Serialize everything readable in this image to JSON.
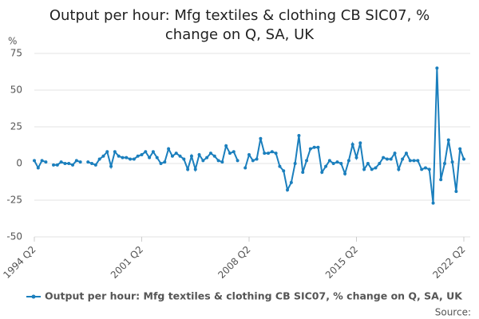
{
  "chart_data": {
    "type": "line",
    "title": "Output per hour: Mfg textiles & clothing CB SIC07, % change on Q, SA, UK",
    "y_label": "%",
    "source": "Source:",
    "categories": [
      "1994 Q2",
      null,
      null,
      null,
      null,
      null,
      null,
      null,
      null,
      null,
      null,
      null,
      null,
      null,
      null,
      null,
      null,
      null,
      null,
      null,
      null,
      null,
      null,
      null,
      null,
      null,
      null,
      null,
      "2001 Q2",
      null,
      null,
      null,
      null,
      null,
      null,
      null,
      null,
      null,
      null,
      null,
      null,
      null,
      null,
      null,
      null,
      null,
      null,
      null,
      null,
      null,
      null,
      null,
      null,
      null,
      null,
      null,
      "2008 Q2",
      null,
      null,
      null,
      null,
      null,
      null,
      null,
      null,
      null,
      null,
      null,
      null,
      null,
      null,
      null,
      null,
      null,
      null,
      null,
      null,
      null,
      null,
      null,
      null,
      null,
      null,
      null,
      "2015 Q2",
      null,
      null,
      null,
      null,
      null,
      null,
      null,
      null,
      null,
      null,
      null,
      null,
      null,
      null,
      null,
      null,
      null,
      null,
      null,
      null,
      null,
      null,
      null,
      null,
      null,
      null,
      null,
      "2022 Q2"
    ],
    "series": [
      {
        "name": "Output per hour: Mfg textiles & clothing CB SIC07, % change on Q, SA, UK",
        "color": "#1b7fbd",
        "values": [
          2,
          -3,
          2,
          1,
          null,
          -1,
          -1,
          1,
          0,
          0,
          -1,
          2,
          1,
          null,
          1,
          0,
          -1,
          3,
          5,
          8,
          -2,
          8,
          5,
          4,
          4,
          3,
          3,
          5,
          6,
          8,
          4,
          8,
          4,
          0,
          1,
          10,
          5,
          7,
          5,
          3,
          -4,
          5,
          -4,
          6,
          2,
          4,
          7,
          5,
          2,
          1,
          12,
          7,
          8,
          2,
          null,
          -3,
          6,
          2,
          3,
          17,
          7,
          7,
          8,
          7,
          -2,
          -5,
          -18,
          -13,
          0,
          19,
          -6,
          2,
          10,
          11,
          11,
          -6,
          -2,
          2,
          0,
          1,
          0,
          -7,
          2,
          13,
          4,
          14,
          -4,
          0,
          -4,
          -3,
          0,
          4,
          3,
          3,
          7,
          -4,
          3,
          7,
          2,
          2,
          2,
          -4,
          -3,
          -4,
          -27,
          65,
          -11,
          0,
          16,
          1,
          -19,
          10,
          3
        ]
      }
    ],
    "ylim": [
      -50,
      75
    ],
    "yticks": [
      -50,
      -25,
      0,
      25,
      50,
      75
    ],
    "grid": true,
    "legend": "bottom"
  }
}
